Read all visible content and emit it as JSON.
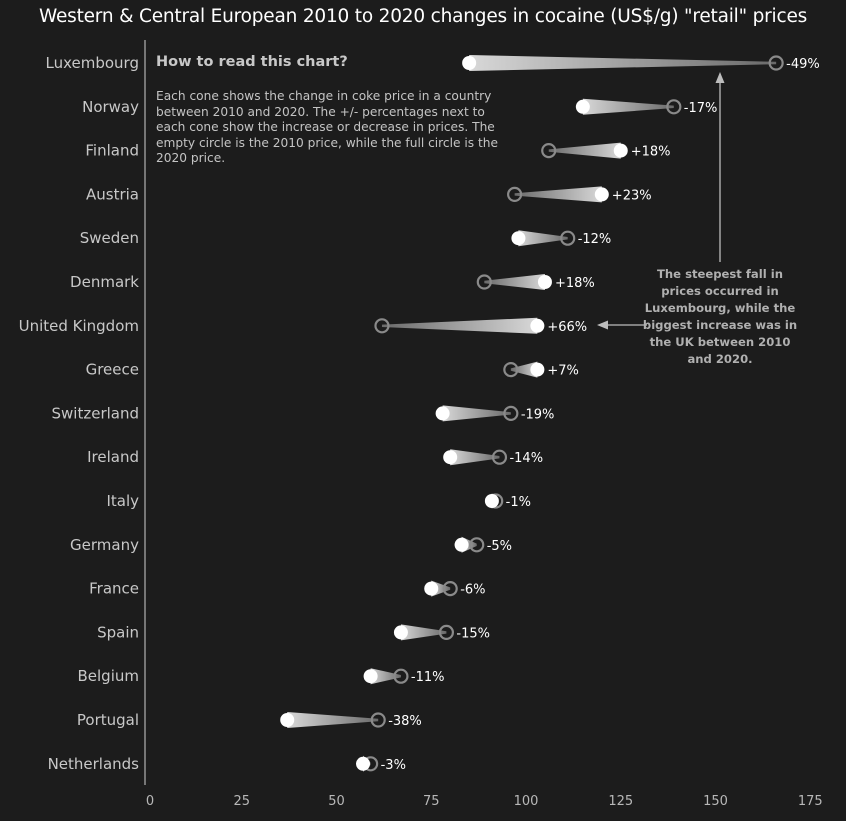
{
  "chart_data": {
    "type": "dumbbell-cone",
    "title": "Western & Central European 2010 to 2020 changes in cocaine (US$/g) \"retail\" prices",
    "xlabel": "",
    "ylabel": "",
    "xlim": [
      0,
      185
    ],
    "xticks": [
      0,
      25,
      50,
      75,
      100,
      125,
      150,
      175
    ],
    "grid": false,
    "series_names": {
      "start": "2010 price (empty circle)",
      "end": "2020 price (full circle)"
    },
    "rows": [
      {
        "country": "Luxembourg",
        "y2010": 166,
        "y2020": 85,
        "change": "-49%"
      },
      {
        "country": "Norway",
        "y2010": 139,
        "y2020": 115,
        "change": "-17%"
      },
      {
        "country": "Finland",
        "y2010": 106,
        "y2020": 125,
        "change": "+18%"
      },
      {
        "country": "Austria",
        "y2010": 97,
        "y2020": 120,
        "change": "+23%"
      },
      {
        "country": "Sweden",
        "y2010": 111,
        "y2020": 98,
        "change": "-12%"
      },
      {
        "country": "Denmark",
        "y2010": 89,
        "y2020": 105,
        "change": "+18%"
      },
      {
        "country": "United Kingdom",
        "y2010": 62,
        "y2020": 103,
        "change": "+66%"
      },
      {
        "country": "Greece",
        "y2010": 96,
        "y2020": 103,
        "change": "+7%"
      },
      {
        "country": "Switzerland",
        "y2010": 96,
        "y2020": 78,
        "change": "-19%"
      },
      {
        "country": "Ireland",
        "y2010": 93,
        "y2020": 80,
        "change": "-14%"
      },
      {
        "country": "Italy",
        "y2010": 92,
        "y2020": 91,
        "change": "-1%"
      },
      {
        "country": "Germany",
        "y2010": 87,
        "y2020": 83,
        "change": "-5%"
      },
      {
        "country": "France",
        "y2010": 80,
        "y2020": 75,
        "change": "-6%"
      },
      {
        "country": "Spain",
        "y2010": 79,
        "y2020": 67,
        "change": "-15%"
      },
      {
        "country": "Belgium",
        "y2010": 67,
        "y2020": 59,
        "change": "-11%"
      },
      {
        "country": "Portugal",
        "y2010": 61,
        "y2020": 37,
        "change": "-38%"
      },
      {
        "country": "Netherlands",
        "y2010": 59,
        "y2020": 57,
        "change": "-3%"
      }
    ],
    "annotations": {
      "howto_heading": "How to read this chart?",
      "howto_body": "Each cone shows the change in coke price in a country between 2010 and 2020. The +/- percentages next to each cone show the increase or decrease in prices. The empty circle is the 2010 price, while the full circle is the 2020 price.",
      "callout": "The steepest fall in prices occurred in Luxembourg, while the biggest increase was in the UK between 2010 and 2020."
    },
    "colors": {
      "background": "#1c1c1c",
      "filled_circle": "#ffffff",
      "empty_circle": "#8a8a8a",
      "cone_light": "#d8d8d8",
      "cone_dark": "#6a6a6a",
      "axis": "#cfcfcf"
    }
  }
}
